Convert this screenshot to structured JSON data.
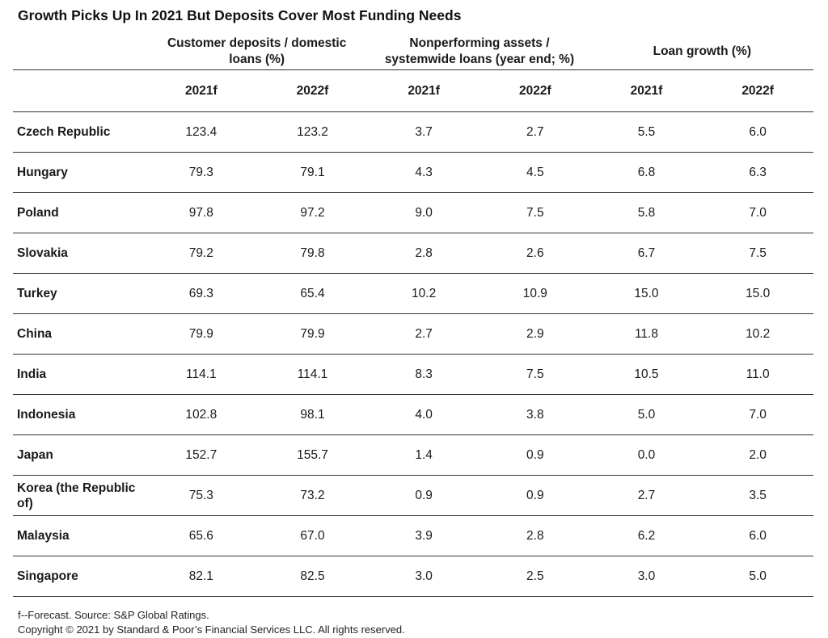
{
  "title": "Growth Picks Up In 2021 But Deposits Cover Most Funding Needs",
  "chart_data": {
    "type": "table",
    "column_groups": [
      {
        "label": "Customer deposits / domestic loans (%)",
        "years": [
          "2021f",
          "2022f"
        ]
      },
      {
        "label": "Nonperforming assets / systemwide loans (year end; %)",
        "years": [
          "2021f",
          "2022f"
        ]
      },
      {
        "label": "Loan growth (%)",
        "years": [
          "2021f",
          "2022f"
        ]
      }
    ],
    "rows": [
      {
        "country": "Czech Republic",
        "values": [
          "123.4",
          "123.2",
          "3.7",
          "2.7",
          "5.5",
          "6.0"
        ]
      },
      {
        "country": "Hungary",
        "values": [
          "79.3",
          "79.1",
          "4.3",
          "4.5",
          "6.8",
          "6.3"
        ]
      },
      {
        "country": "Poland",
        "values": [
          "97.8",
          "97.2",
          "9.0",
          "7.5",
          "5.8",
          "7.0"
        ]
      },
      {
        "country": "Slovakia",
        "values": [
          "79.2",
          "79.8",
          "2.8",
          "2.6",
          "6.7",
          "7.5"
        ]
      },
      {
        "country": "Turkey",
        "values": [
          "69.3",
          "65.4",
          "10.2",
          "10.9",
          "15.0",
          "15.0"
        ]
      },
      {
        "country": "China",
        "values": [
          "79.9",
          "79.9",
          "2.7",
          "2.9",
          "11.8",
          "10.2"
        ]
      },
      {
        "country": "India",
        "values": [
          "114.1",
          "114.1",
          "8.3",
          "7.5",
          "10.5",
          "11.0"
        ]
      },
      {
        "country": "Indonesia",
        "values": [
          "102.8",
          "98.1",
          "4.0",
          "3.8",
          "5.0",
          "7.0"
        ]
      },
      {
        "country": "Japan",
        "values": [
          "152.7",
          "155.7",
          "1.4",
          "0.9",
          "0.0",
          "2.0"
        ]
      },
      {
        "country": "Korea (the Republic of)",
        "values": [
          "75.3",
          "73.2",
          "0.9",
          "0.9",
          "2.7",
          "3.5"
        ]
      },
      {
        "country": "Malaysia",
        "values": [
          "65.6",
          "67.0",
          "3.9",
          "2.8",
          "6.2",
          "6.0"
        ]
      },
      {
        "country": "Singapore",
        "values": [
          "82.1",
          "82.5",
          "3.0",
          "2.5",
          "3.0",
          "5.0"
        ]
      }
    ]
  },
  "footnote": {
    "line1": "f--Forecast. Source: S&P Global Ratings.",
    "line2": "Copyright © 2021 by Standard & Poor’s Financial Services LLC. All rights reserved."
  }
}
